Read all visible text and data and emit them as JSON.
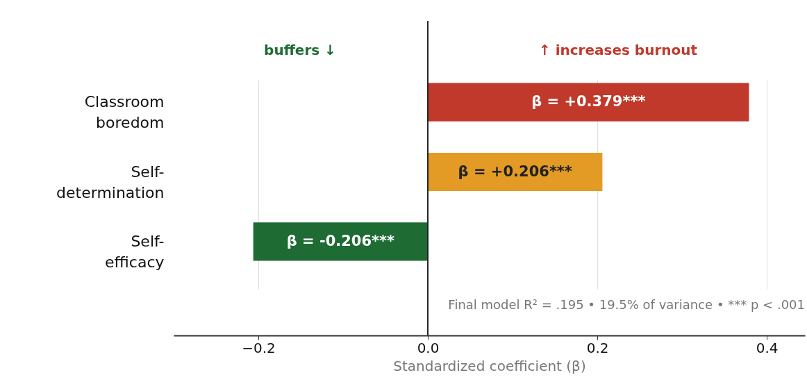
{
  "chart_data": {
    "type": "bar",
    "orientation": "horizontal",
    "categories": [
      "Classroom boredom",
      "Self-determination",
      "Self-efficacy"
    ],
    "values": [
      0.379,
      0.206,
      -0.206
    ],
    "colors": [
      "#c0392b",
      "#e39b26",
      "#1e6b34"
    ],
    "value_labels": [
      "β = +0.379***",
      "β = +0.206***",
      "β = -0.206***"
    ],
    "xlabel": "Standardized coefficient (β)",
    "xlim": [
      -0.3,
      0.445
    ],
    "xticks": [
      {
        "value": -0.2,
        "label": "−0.2"
      },
      {
        "value": 0,
        "label": "0.0"
      },
      {
        "value": 0.2,
        "label": "0.2"
      },
      {
        "value": 0.4,
        "label": "0.4"
      }
    ],
    "grid": "x",
    "ref_lines": [
      {
        "axis": "x",
        "value": 0,
        "label": null,
        "color": "#222222"
      }
    ],
    "annotations": [
      "buffers ↓",
      "↑ increases burnout",
      "Final model R² = .195  •  19.5% of variance  •  *** p < .001"
    ]
  }
}
